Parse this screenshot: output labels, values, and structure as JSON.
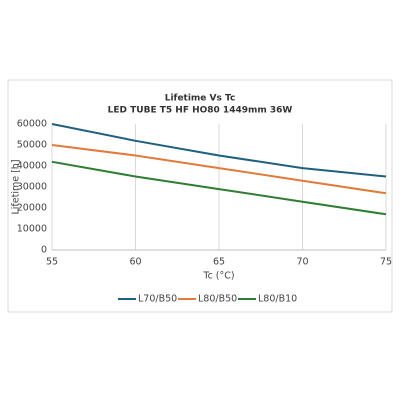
{
  "chart_data": {
    "type": "line",
    "title": "Lifetime Vs Tc",
    "subtitle": "LED TUBE T5 HF HO80 1449mm 36W",
    "x_label": "Tc (°C)",
    "y_label": "Lifetime [h]",
    "x": [
      55,
      60,
      65,
      70,
      75
    ],
    "series": [
      {
        "name": "L70/B50",
        "color": "#1f5f7f",
        "values": [
          60000,
          52000,
          45000,
          39000,
          35000
        ]
      },
      {
        "name": "L80/B50",
        "color": "#e07b39",
        "values": [
          50000,
          45000,
          39000,
          33000,
          27000
        ]
      },
      {
        "name": "L80/B10",
        "color": "#2e7d32",
        "values": [
          42000,
          35000,
          29000,
          23000,
          17000
        ]
      }
    ],
    "xlim": [
      55,
      75
    ],
    "xticks": [
      55,
      60,
      65,
      70,
      75
    ],
    "ylim": [
      0,
      60000
    ],
    "yticks": [
      0,
      10000,
      20000,
      30000,
      40000,
      50000,
      60000
    ],
    "grid": "x",
    "legend": "bottom"
  }
}
